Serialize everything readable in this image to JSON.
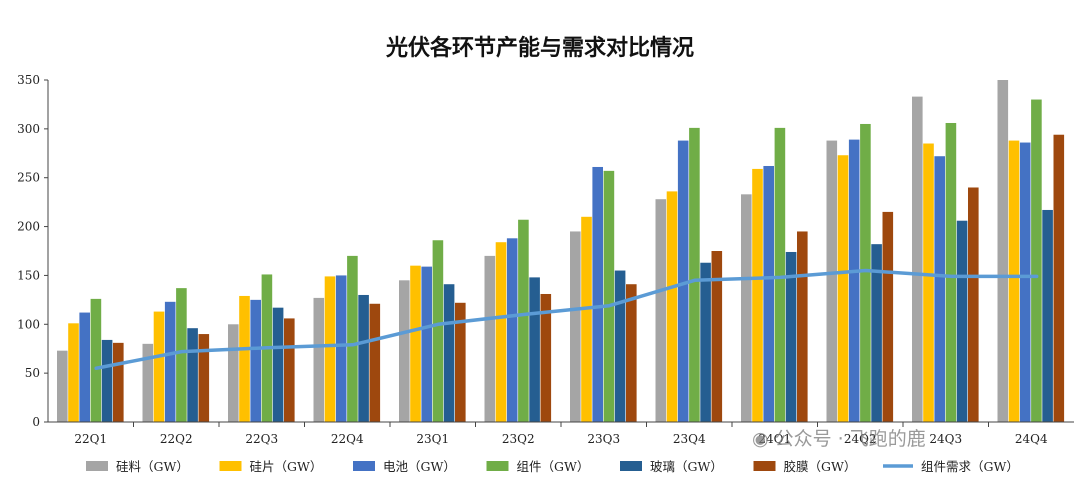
{
  "chart_data": {
    "type": "bar",
    "title": "光伏各环节产能与需求对比情况",
    "categories": [
      "22Q1",
      "22Q2",
      "22Q3",
      "22Q4",
      "23Q1",
      "23Q2",
      "23Q3",
      "23Q4",
      "24Q1",
      "24Q2",
      "24Q3",
      "24Q4"
    ],
    "ylim": [
      0,
      350
    ],
    "yticks": [
      0,
      50,
      100,
      150,
      200,
      250,
      300,
      350
    ],
    "grid": false,
    "legend_position": "bottom",
    "series": [
      {
        "name": "硅料（GW）",
        "kind": "bar",
        "color": "#a5a5a5",
        "values": [
          73,
          80,
          100,
          127,
          145,
          170,
          195,
          228,
          233,
          288,
          333,
          350
        ]
      },
      {
        "name": "硅片（GW）",
        "kind": "bar",
        "color": "#ffc000",
        "values": [
          101,
          113,
          129,
          149,
          160,
          184,
          210,
          236,
          259,
          273,
          285,
          288
        ]
      },
      {
        "name": "电池（GW）",
        "kind": "bar",
        "color": "#4472c4",
        "values": [
          112,
          123,
          125,
          150,
          159,
          188,
          261,
          288,
          262,
          289,
          272,
          286
        ]
      },
      {
        "name": "组件（GW）",
        "kind": "bar",
        "color": "#70ad47",
        "values": [
          126,
          137,
          151,
          170,
          186,
          207,
          257,
          301,
          301,
          305,
          306,
          330
        ]
      },
      {
        "name": "玻璃（GW）",
        "kind": "bar",
        "color": "#255e91",
        "values": [
          84,
          96,
          117,
          130,
          141,
          148,
          155,
          163,
          174,
          182,
          206,
          217
        ]
      },
      {
        "name": "胶膜（GW）",
        "kind": "bar",
        "color": "#9e480e",
        "values": [
          81,
          90,
          106,
          121,
          122,
          131,
          141,
          175,
          195,
          215,
          240,
          294
        ]
      },
      {
        "name": "组件需求（GW）",
        "kind": "line",
        "color": "#5b9bd5",
        "values": [
          55,
          72,
          76,
          79,
          100,
          110,
          119,
          145,
          148,
          155,
          149,
          149
        ]
      }
    ]
  },
  "watermark": "公众号 · 飞跑的鹿",
  "watermark_icon": "wechat-icon"
}
